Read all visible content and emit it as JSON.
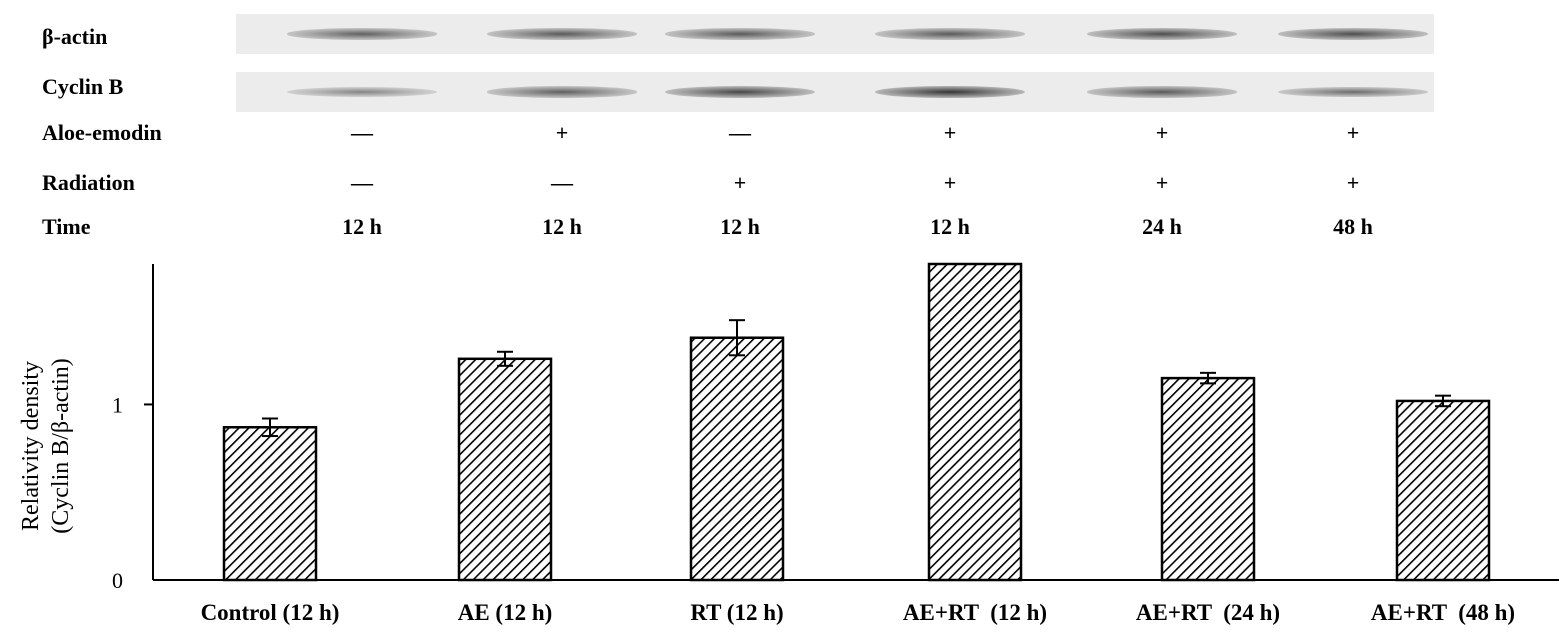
{
  "blot": {
    "row_labels": [
      "β-actin",
      "Cyclin B",
      "Aloe-emodin",
      "Radiation",
      "Time"
    ],
    "lanes": [
      {
        "aloe_emodin": "—",
        "radiation": "—",
        "time": "12 h",
        "beta_actin_intensity": 0.55,
        "cyclin_b_intensity": 0.25
      },
      {
        "aloe_emodin": "+",
        "radiation": "—",
        "time": "12 h",
        "beta_actin_intensity": 0.6,
        "cyclin_b_intensity": 0.55
      },
      {
        "aloe_emodin": "—",
        "radiation": "+",
        "time": "12 h",
        "beta_actin_intensity": 0.6,
        "cyclin_b_intensity": 0.75
      },
      {
        "aloe_emodin": "+",
        "radiation": "+",
        "time": "12 h",
        "beta_actin_intensity": 0.6,
        "cyclin_b_intensity": 0.9
      },
      {
        "aloe_emodin": "+",
        "radiation": "+",
        "time": "24 h",
        "beta_actin_intensity": 0.7,
        "cyclin_b_intensity": 0.6
      },
      {
        "aloe_emodin": "+",
        "radiation": "+",
        "time": "48 h",
        "beta_actin_intensity": 0.7,
        "cyclin_b_intensity": 0.45
      }
    ],
    "band_color": "#3a3a3a"
  },
  "chart_data": {
    "type": "bar",
    "categories": [
      "Control (12 h)",
      "AE (12 h)",
      "RT (12 h)",
      "AE+RT  (12 h)",
      "AE+RT  (24 h)",
      "AE+RT  (48 h)"
    ],
    "values": [
      0.87,
      1.26,
      1.38,
      1.82,
      1.15,
      1.02
    ],
    "errors": [
      0.05,
      0.04,
      0.1,
      0.0,
      0.03,
      0.03
    ],
    "ylabel_lines": [
      "Relativity density",
      "(Cyclin B/β-actin)"
    ],
    "ylim": [
      0,
      1.8
    ],
    "yticks": [
      0,
      1
    ],
    "ytick_labels": [
      "0",
      "1"
    ],
    "pattern": "diagonal-hatch",
    "bar_color": "#000000",
    "grid": false
  }
}
